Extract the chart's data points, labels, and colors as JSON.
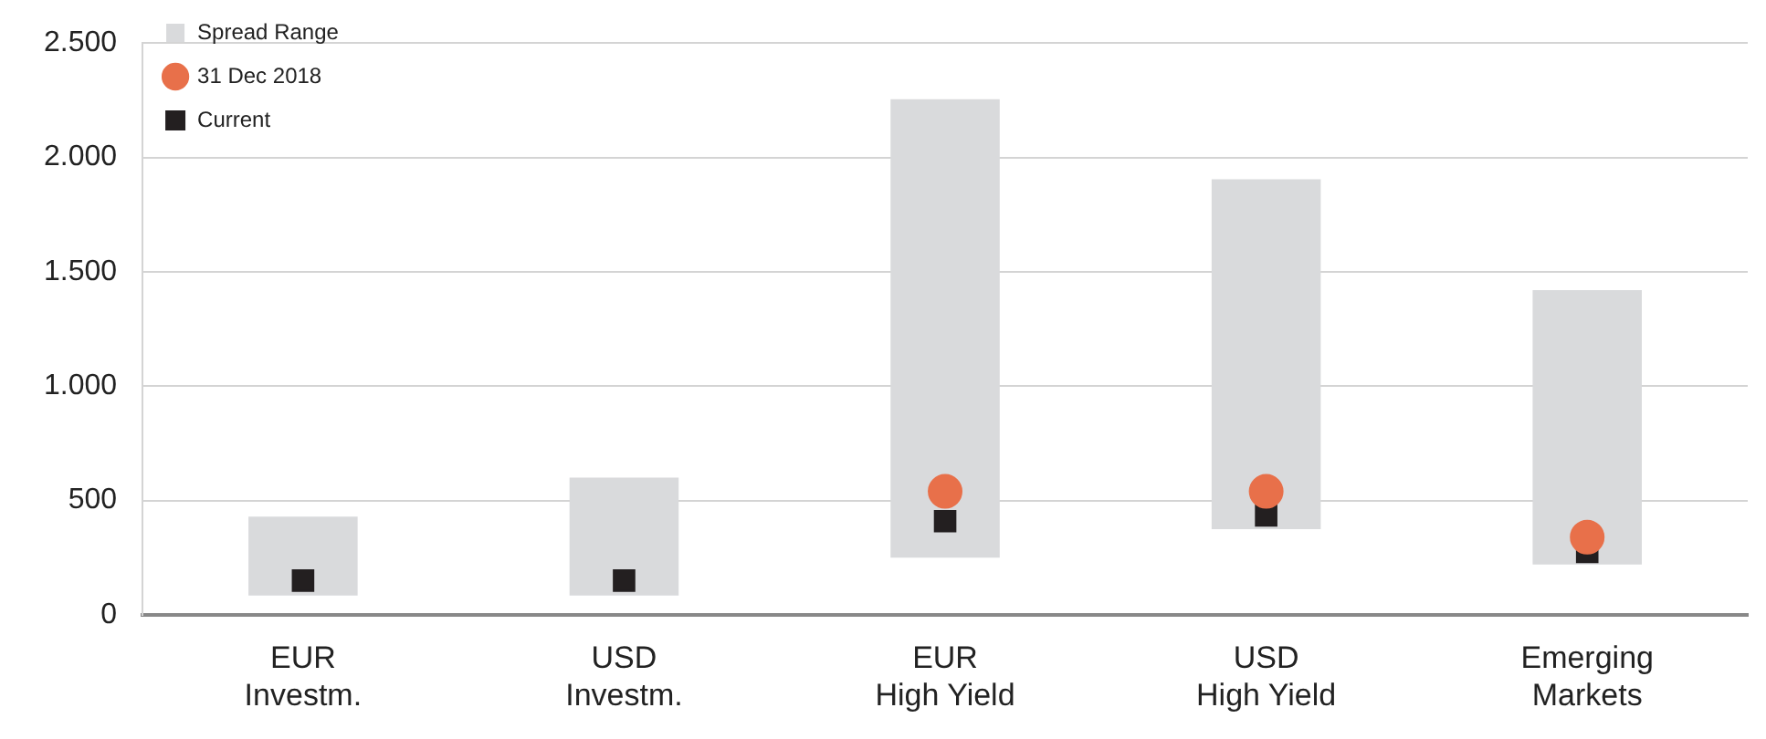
{
  "chart_data": {
    "type": "bar",
    "categories": [
      "EUR Investm.",
      "USD Investm.",
      "EUR High Yield",
      "USD High Yield",
      "Emerging Markets"
    ],
    "series": [
      {
        "name": "Spread Range",
        "color": "#d9dadc",
        "base": [
          85,
          85,
          250,
          375,
          220
        ],
        "values": [
          345,
          515,
          2005,
          1530,
          1200
        ]
      },
      {
        "name": "31 Dec 2018",
        "type": "scatter",
        "marker": "circle",
        "color": "#e8704a",
        "values": [
          null,
          null,
          540,
          540,
          340
        ]
      },
      {
        "name": "Current",
        "type": "scatter",
        "marker": "square",
        "color": "#231f20",
        "values": [
          150,
          150,
          410,
          435,
          275
        ]
      }
    ],
    "ylim": [
      0,
      2500
    ],
    "yticks": [
      {
        "value": 0,
        "label": "0"
      },
      {
        "value": 500,
        "label": "500"
      },
      {
        "value": 1000,
        "label": "1.000"
      },
      {
        "value": 1500,
        "label": "1.500"
      },
      {
        "value": 2000,
        "label": "2.000"
      },
      {
        "value": 2500,
        "label": "2.500"
      }
    ],
    "grid": "y",
    "legend": "top left"
  }
}
